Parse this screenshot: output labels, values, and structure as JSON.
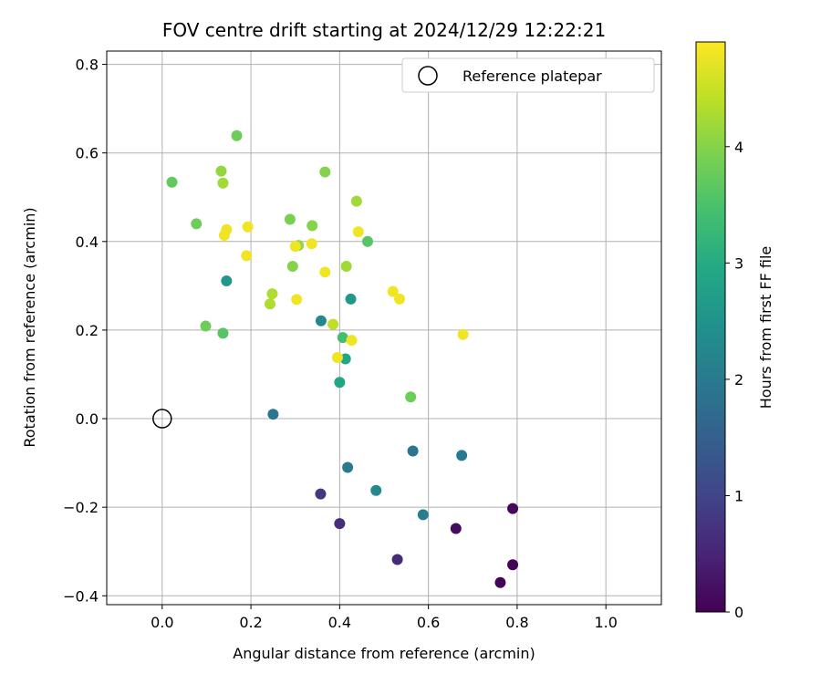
{
  "chart_data": {
    "type": "scatter",
    "title": "FOV centre drift starting at 2024/12/29 12:22:21",
    "xlabel": "Angular distance from reference (arcmin)",
    "ylabel": "Rotation from reference (arcmin)",
    "xlim": [
      -0.125,
      1.125
    ],
    "ylim": [
      -0.42,
      0.83
    ],
    "xticks": [
      0.0,
      0.2,
      0.4,
      0.6,
      0.8,
      1.0
    ],
    "xtick_labels": [
      "0.0",
      "0.2",
      "0.4",
      "0.6",
      "0.8",
      "1.0"
    ],
    "yticks": [
      -0.4,
      -0.2,
      0.0,
      0.2,
      0.4,
      0.6,
      0.8
    ],
    "ytick_labels": [
      "−0.4",
      "−0.2",
      "0.0",
      "0.2",
      "0.4",
      "0.6",
      "0.8"
    ],
    "grid": true,
    "legend": {
      "position": "top-right",
      "entries": [
        "Reference platepar"
      ]
    },
    "reference_point": {
      "x": 0.0,
      "y": 0.0,
      "label": "Reference platepar"
    },
    "colorbar": {
      "label": "Hours from first FF file",
      "colormap": "viridis",
      "range": [
        0,
        4.9
      ],
      "ticks": [
        0,
        1,
        2,
        3,
        4
      ],
      "tick_labels": [
        "0",
        "1",
        "2",
        "3",
        "4"
      ]
    },
    "points": [
      {
        "x": 0.762,
        "y": -0.37,
        "hours": 0.05
      },
      {
        "x": 0.79,
        "y": -0.33,
        "hours": 0.05
      },
      {
        "x": 0.79,
        "y": -0.203,
        "hours": 0.1
      },
      {
        "x": 0.662,
        "y": -0.248,
        "hours": 0.15
      },
      {
        "x": 0.53,
        "y": -0.318,
        "hours": 0.6
      },
      {
        "x": 0.4,
        "y": -0.237,
        "hours": 0.65
      },
      {
        "x": 0.357,
        "y": -0.17,
        "hours": 0.8
      },
      {
        "x": 0.588,
        "y": -0.217,
        "hours": 2.1
      },
      {
        "x": 0.482,
        "y": -0.162,
        "hours": 2.3
      },
      {
        "x": 0.418,
        "y": -0.11,
        "hours": 2.0
      },
      {
        "x": 0.565,
        "y": -0.073,
        "hours": 1.9
      },
      {
        "x": 0.675,
        "y": -0.083,
        "hours": 2.0
      },
      {
        "x": 0.25,
        "y": 0.01,
        "hours": 1.9
      },
      {
        "x": 0.4,
        "y": 0.082,
        "hours": 2.9
      },
      {
        "x": 0.413,
        "y": 0.135,
        "hours": 2.9
      },
      {
        "x": 0.358,
        "y": 0.221,
        "hours": 2.3
      },
      {
        "x": 0.425,
        "y": 0.27,
        "hours": 2.6
      },
      {
        "x": 0.145,
        "y": 0.311,
        "hours": 2.6
      },
      {
        "x": 0.407,
        "y": 0.183,
        "hours": 3.4
      },
      {
        "x": 0.56,
        "y": 0.049,
        "hours": 3.8
      },
      {
        "x": 0.463,
        "y": 0.4,
        "hours": 3.6
      },
      {
        "x": 0.137,
        "y": 0.193,
        "hours": 3.6
      },
      {
        "x": 0.098,
        "y": 0.209,
        "hours": 3.8
      },
      {
        "x": 0.077,
        "y": 0.44,
        "hours": 3.8
      },
      {
        "x": 0.022,
        "y": 0.534,
        "hours": 3.7
      },
      {
        "x": 0.168,
        "y": 0.639,
        "hours": 3.8
      },
      {
        "x": 0.133,
        "y": 0.559,
        "hours": 4.1
      },
      {
        "x": 0.137,
        "y": 0.532,
        "hours": 4.2
      },
      {
        "x": 0.367,
        "y": 0.557,
        "hours": 4.0
      },
      {
        "x": 0.438,
        "y": 0.491,
        "hours": 4.2
      },
      {
        "x": 0.288,
        "y": 0.45,
        "hours": 3.9
      },
      {
        "x": 0.338,
        "y": 0.436,
        "hours": 4.0
      },
      {
        "x": 0.307,
        "y": 0.391,
        "hours": 4.1
      },
      {
        "x": 0.294,
        "y": 0.344,
        "hours": 4.0
      },
      {
        "x": 0.415,
        "y": 0.344,
        "hours": 4.2
      },
      {
        "x": 0.248,
        "y": 0.282,
        "hours": 4.3
      },
      {
        "x": 0.243,
        "y": 0.259,
        "hours": 4.3
      },
      {
        "x": 0.385,
        "y": 0.213,
        "hours": 4.4
      },
      {
        "x": 0.145,
        "y": 0.427,
        "hours": 4.8
      },
      {
        "x": 0.14,
        "y": 0.414,
        "hours": 4.8
      },
      {
        "x": 0.193,
        "y": 0.433,
        "hours": 4.8
      },
      {
        "x": 0.19,
        "y": 0.368,
        "hours": 4.8
      },
      {
        "x": 0.3,
        "y": 0.389,
        "hours": 4.8
      },
      {
        "x": 0.337,
        "y": 0.395,
        "hours": 4.8
      },
      {
        "x": 0.442,
        "y": 0.422,
        "hours": 4.8
      },
      {
        "x": 0.367,
        "y": 0.331,
        "hours": 4.8
      },
      {
        "x": 0.303,
        "y": 0.269,
        "hours": 4.8
      },
      {
        "x": 0.52,
        "y": 0.287,
        "hours": 4.8
      },
      {
        "x": 0.535,
        "y": 0.27,
        "hours": 4.8
      },
      {
        "x": 0.427,
        "y": 0.177,
        "hours": 4.8
      },
      {
        "x": 0.395,
        "y": 0.138,
        "hours": 4.8
      },
      {
        "x": 0.678,
        "y": 0.19,
        "hours": 4.8
      }
    ]
  }
}
